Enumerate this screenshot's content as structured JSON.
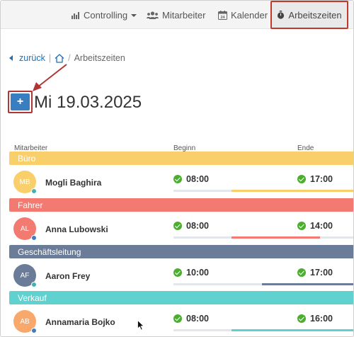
{
  "nav": {
    "controlling": "Controlling",
    "mitarbeiter": "Mitarbeiter",
    "kalender": "Kalender",
    "kalender_day": "24",
    "arbeitszeiten": "Arbeitszeiten"
  },
  "breadcrumb": {
    "back": "zurück",
    "current": "Arbeitszeiten"
  },
  "add_button": "+",
  "date_title": "Mi 19.03.2025",
  "columns": {
    "employee": "Mitarbeiter",
    "begin": "Beginn",
    "end": "Ende"
  },
  "groups": [
    {
      "name": "Büro",
      "color": "#f9cf6c",
      "employee": {
        "initials": "MB",
        "name": "Mogli Baghira",
        "avatar_color": "#f9cf6c",
        "status_color": "#3fb2b9",
        "begin": "08:00",
        "end": "17:00",
        "bar_start": 0.32,
        "bar_end": 1.0,
        "bar_color": "#f9cf6c"
      }
    },
    {
      "name": "Fahrer",
      "color": "#f27a71",
      "employee": {
        "initials": "AL",
        "name": "Anna Lubowski",
        "avatar_color": "#f27a71",
        "status_color": "#3a7ec2",
        "begin": "08:00",
        "end": "14:00",
        "bar_start": 0.32,
        "bar_end": 0.81,
        "bar_color": "#f27a71"
      }
    },
    {
      "name": "Geschäftsleitung",
      "color": "#6a7c98",
      "employee": {
        "initials": "AF",
        "name": "Aaron Frey",
        "avatar_color": "#6a7c98",
        "status_color": "#3fb2b9",
        "begin": "10:00",
        "end": "17:00",
        "bar_start": 0.49,
        "bar_end": 1.0,
        "bar_color": "#6a7c98"
      }
    },
    {
      "name": "Verkauf",
      "color": "#5fd1cf",
      "employee": {
        "initials": "AB",
        "name": "Annamaria Bojko",
        "avatar_color": "#f8a86a",
        "status_color": "#3a7ec2",
        "begin": "08:00",
        "end": "16:00",
        "bar_start": 0.32,
        "bar_end": 1.0,
        "bar_color": "#5fd1cf"
      }
    }
  ]
}
